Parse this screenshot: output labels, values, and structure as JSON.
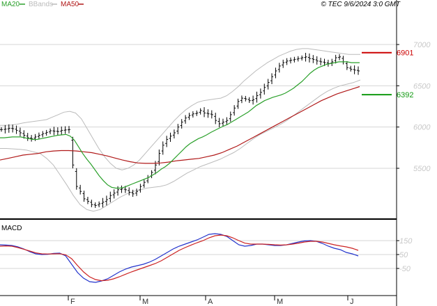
{
  "header": {
    "legend": [
      {
        "label": "MA20",
        "color": "#2aa02a"
      },
      {
        "label": "BBands",
        "color": "#bbbbbb"
      },
      {
        "label": "MA50",
        "color": "#b01818"
      }
    ],
    "copyright": "© TEC 9/6/2024 3:0 GMT"
  },
  "chart_data": [
    {
      "type": "ohlc",
      "title": "",
      "xlabel": "",
      "ylabel": "",
      "x_ticks": [
        "F",
        "M",
        "A",
        "M",
        "J"
      ],
      "y_ticks": [
        5500,
        6000,
        6500,
        7000
      ],
      "ylim": [
        5000,
        7200
      ],
      "grid": true,
      "levels": [
        {
          "name": "resistance",
          "value": 6901,
          "label": "6901",
          "color": "#cc0000"
        },
        {
          "name": "support",
          "value": 6392,
          "label": "6392",
          "color": "#119911"
        }
      ],
      "close_series": [
        5970,
        5975,
        5985,
        5980,
        5960,
        5930,
        5900,
        5870,
        5860,
        5880,
        5900,
        5920,
        5935,
        5955,
        5950,
        5945,
        5960,
        5965,
        5970,
        5540,
        5280,
        5220,
        5130,
        5100,
        5060,
        5050,
        5070,
        5090,
        5120,
        5170,
        5200,
        5240,
        5250,
        5240,
        5210,
        5190,
        5220,
        5280,
        5330,
        5390,
        5450,
        5540,
        5680,
        5780,
        5850,
        5890,
        5930,
        6000,
        6060,
        6110,
        6140,
        6160,
        6170,
        6200,
        6170,
        6160,
        6150,
        6080,
        6040,
        6060,
        6080,
        6150,
        6230,
        6310,
        6350,
        6340,
        6320,
        6330,
        6380,
        6420,
        6480,
        6540,
        6610,
        6680,
        6740,
        6780,
        6800,
        6810,
        6820,
        6830,
        6840,
        6850,
        6830,
        6820,
        6800,
        6790,
        6780,
        6770,
        6790,
        6840,
        6850,
        6790,
        6720,
        6700,
        6690,
        6680
      ],
      "series": [
        {
          "name": "MA20",
          "color": "#2aa02a",
          "values": [
            5870,
            5870,
            5875,
            5880,
            5880,
            5880,
            5870,
            5860,
            5850,
            5850,
            5860,
            5870,
            5880,
            5890,
            5900,
            5905,
            5910,
            5890,
            5840,
            5760,
            5680,
            5610,
            5550,
            5480,
            5410,
            5350,
            5300,
            5270,
            5260,
            5260,
            5270,
            5290,
            5310,
            5330,
            5350,
            5370,
            5390,
            5420,
            5450,
            5490,
            5520,
            5560,
            5610,
            5660,
            5710,
            5760,
            5800,
            5830,
            5860,
            5880,
            5905,
            5935,
            5960,
            5985,
            6010,
            6030,
            6060,
            6090,
            6120,
            6150,
            6180,
            6220,
            6260,
            6290,
            6320,
            6340,
            6360,
            6375,
            6390,
            6410,
            6440,
            6470,
            6510,
            6550,
            6600,
            6650,
            6690,
            6720,
            6740,
            6760,
            6770,
            6780,
            6790,
            6790,
            6790,
            6780,
            6780,
            6780
          ]
        },
        {
          "name": "MA50",
          "color": "#b01818",
          "values": [
            5600,
            5620,
            5640,
            5660,
            5670,
            5680,
            5700,
            5710,
            5715,
            5715,
            5710,
            5700,
            5690,
            5670,
            5650,
            5625,
            5600,
            5580,
            5565,
            5560,
            5560,
            5565,
            5575,
            5590,
            5600,
            5610,
            5620,
            5640,
            5660,
            5690,
            5730,
            5770,
            5820,
            5870,
            5920,
            5970,
            6020,
            6070,
            6120,
            6170,
            6220,
            6270,
            6320,
            6360,
            6400,
            6430,
            6460,
            6490
          ]
        },
        {
          "name": "BBands upper",
          "color": "#bbbbbb",
          "values": [
            6020,
            6020,
            6025,
            6035,
            6050,
            6060,
            6070,
            6080,
            6090,
            6120,
            6150,
            6180,
            6190,
            6170,
            6100,
            5980,
            5860,
            5740,
            5640,
            5560,
            5500,
            5480,
            5500,
            5540,
            5600,
            5680,
            5760,
            5840,
            5920,
            6000,
            6080,
            6150,
            6210,
            6260,
            6300,
            6320,
            6330,
            6340,
            6350,
            6380,
            6430,
            6490,
            6560,
            6620,
            6680,
            6730,
            6780,
            6820,
            6860,
            6890,
            6920,
            6940,
            6950,
            6950,
            6940,
            6930,
            6920,
            6910,
            6900,
            6890,
            6880,
            6880,
            6880
          ]
        },
        {
          "name": "BBands lower",
          "color": "#bbbbbb",
          "values": [
            5740,
            5740,
            5735,
            5730,
            5720,
            5700,
            5680,
            5620,
            5540,
            5420,
            5300,
            5170,
            5060,
            5000,
            4980,
            5000,
            5050,
            5100,
            5150,
            5190,
            5220,
            5240,
            5260,
            5270,
            5280,
            5300,
            5340,
            5390,
            5440,
            5480,
            5520,
            5550,
            5580,
            5610,
            5650,
            5690,
            5740,
            5800,
            5860,
            5910,
            5950,
            5990,
            6030,
            6080,
            6140,
            6200,
            6260,
            6320,
            6380,
            6430,
            6470,
            6500,
            6520,
            6540,
            6570
          ]
        }
      ]
    },
    {
      "type": "line",
      "title": "MACD",
      "xlabel": "",
      "ylabel": "",
      "y_ticks": [
        -50,
        50,
        150
      ],
      "ylim": [
        -160,
        220
      ],
      "grid": true,
      "series": [
        {
          "name": "",
          "color": "#2233cc",
          "values": [
            120,
            118,
            115,
            105,
            90,
            70,
            55,
            50,
            52,
            58,
            60,
            40,
            -20,
            -80,
            -120,
            -145,
            -150,
            -140,
            -125,
            -100,
            -75,
            -55,
            -40,
            -30,
            -20,
            -5,
            15,
            40,
            65,
            90,
            110,
            125,
            140,
            155,
            175,
            195,
            200,
            195,
            180,
            150,
            120,
            110,
            115,
            125,
            125,
            120,
            115,
            115,
            120,
            130,
            140,
            148,
            150,
            145,
            130,
            110,
            95,
            85,
            65,
            55,
            40
          ]
        },
        {
          "name": "",
          "color": "#cc2222",
          "values": [
            110,
            112,
            110,
            100,
            88,
            75,
            62,
            55,
            54,
            55,
            56,
            48,
            20,
            -30,
            -75,
            -110,
            -130,
            -138,
            -135,
            -125,
            -110,
            -92,
            -75,
            -60,
            -45,
            -30,
            -15,
            5,
            30,
            55,
            80,
            100,
            118,
            135,
            150,
            170,
            185,
            190,
            185,
            170,
            150,
            132,
            125,
            125,
            125,
            123,
            120,
            118,
            120,
            125,
            132,
            140,
            145,
            145,
            140,
            130,
            120,
            112,
            105,
            95,
            80
          ]
        }
      ]
    }
  ]
}
